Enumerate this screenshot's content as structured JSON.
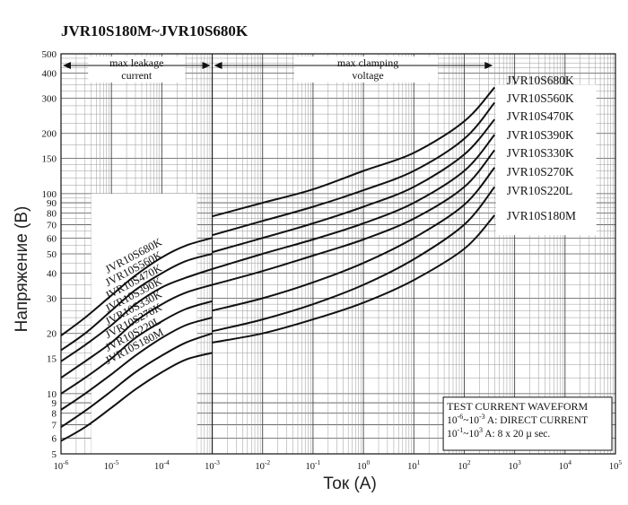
{
  "chart_data": {
    "type": "line",
    "title": "JVR10S180M~JVR10S680K",
    "xlabel": "Ток (А)",
    "ylabel": "Напряжение (В)",
    "x_scale": "log",
    "y_scale": "log",
    "xlim": [
      1e-06,
      100000
    ],
    "ylim": [
      5,
      500
    ],
    "x_ticks": [
      {
        "value": 1e-06,
        "base": "10",
        "exp": "-6"
      },
      {
        "value": 1e-05,
        "base": "10",
        "exp": "-5"
      },
      {
        "value": 0.0001,
        "base": "10",
        "exp": "-4"
      },
      {
        "value": 0.001,
        "base": "10",
        "exp": "-3"
      },
      {
        "value": 0.01,
        "base": "10",
        "exp": "-2"
      },
      {
        "value": 0.1,
        "base": "10",
        "exp": "-1"
      },
      {
        "value": 1,
        "base": "10",
        "exp": "0"
      },
      {
        "value": 10,
        "base": "10",
        "exp": "1"
      },
      {
        "value": 100,
        "base": "10",
        "exp": "2"
      },
      {
        "value": 1000,
        "base": "10",
        "exp": "3"
      },
      {
        "value": 10000,
        "base": "10",
        "exp": "4"
      },
      {
        "value": 100000,
        "base": "10",
        "exp": "5"
      }
    ],
    "y_ticks": [
      {
        "value": 5,
        "label": "5"
      },
      {
        "value": 6,
        "label": "6"
      },
      {
        "value": 7,
        "label": "7"
      },
      {
        "value": 8,
        "label": "8"
      },
      {
        "value": 9,
        "label": "9"
      },
      {
        "value": 10,
        "label": "10"
      },
      {
        "value": 15,
        "label": "15"
      },
      {
        "value": 20,
        "label": "20"
      },
      {
        "value": 30,
        "label": "30"
      },
      {
        "value": 40,
        "label": "40"
      },
      {
        "value": 50,
        "label": "50"
      },
      {
        "value": 60,
        "label": "60"
      },
      {
        "value": 70,
        "label": "70"
      },
      {
        "value": 80,
        "label": "80"
      },
      {
        "value": 90,
        "label": "90"
      },
      {
        "value": 100,
        "label": "100"
      },
      {
        "value": 150,
        "label": "150"
      },
      {
        "value": 200,
        "label": "200"
      },
      {
        "value": 300,
        "label": "300"
      },
      {
        "value": 400,
        "label": "400"
      },
      {
        "value": 500,
        "label": "500"
      }
    ],
    "regions": {
      "leakage": {
        "line1": "max leakage",
        "line2": "current",
        "x_range": [
          1e-06,
          0.001
        ]
      },
      "clamping": {
        "line1": "max clamping",
        "line2": "voltage",
        "x_range": [
          0.001,
          400
        ]
      }
    },
    "test_waveform": {
      "title": "TEST CURRENT WAVEFORM",
      "row1_base": "10",
      "row1_exp1": "-6",
      "row1_sep": "~10",
      "row1_exp2": "-3",
      "row1_text": "A: DIRECT CURRENT",
      "row2_base": "10",
      "row2_exp1": "-1",
      "row2_sep": "~10",
      "row2_exp2": "3",
      "row2_text": "A: 8 x 20 µ sec."
    },
    "series": [
      {
        "name": "JVR10S680K",
        "leakage": {
          "x": [
            1e-06,
            3e-06,
            1e-05,
            3e-05,
            0.0001,
            0.0003,
            0.001
          ],
          "y": [
            19.5,
            24,
            31,
            39,
            48,
            55,
            60
          ]
        },
        "clamping": {
          "x": [
            0.001,
            0.01,
            0.1,
            1,
            10,
            100,
            400
          ],
          "y": [
            77,
            90,
            105,
            130,
            160,
            230,
            340
          ]
        }
      },
      {
        "name": "JVR10S560K",
        "leakage": {
          "x": [
            1e-06,
            3e-06,
            1e-05,
            3e-05,
            0.0001,
            0.0003,
            0.001
          ],
          "y": [
            16.5,
            20,
            26,
            33,
            40,
            46,
            50
          ]
        },
        "clamping": {
          "x": [
            0.001,
            0.01,
            0.1,
            1,
            10,
            100,
            400
          ],
          "y": [
            62,
            73,
            86,
            104,
            130,
            188,
            285
          ]
        }
      },
      {
        "name": "JVR10S470K",
        "leakage": {
          "x": [
            1e-06,
            3e-06,
            1e-05,
            3e-05,
            0.0001,
            0.0003,
            0.001
          ],
          "y": [
            14.5,
            17.5,
            22,
            28,
            34,
            38,
            42
          ]
        },
        "clamping": {
          "x": [
            0.001,
            0.01,
            0.1,
            1,
            10,
            100,
            400
          ],
          "y": [
            51,
            60,
            71,
            86,
            108,
            157,
            235
          ]
        }
      },
      {
        "name": "JVR10S390K",
        "leakage": {
          "x": [
            1e-06,
            3e-06,
            1e-05,
            3e-05,
            0.0001,
            0.0003,
            0.001
          ],
          "y": [
            12,
            14.5,
            18,
            23,
            28,
            32,
            35
          ]
        },
        "clamping": {
          "x": [
            0.001,
            0.01,
            0.1,
            1,
            10,
            100,
            400
          ],
          "y": [
            42,
            50,
            59,
            71,
            90,
            130,
            197
          ]
        }
      },
      {
        "name": "JVR10S330K",
        "leakage": {
          "x": [
            1e-06,
            3e-06,
            1e-05,
            3e-05,
            0.0001,
            0.0003,
            0.001
          ],
          "y": [
            10,
            12,
            15,
            19,
            23,
            26.5,
            29
          ]
        },
        "clamping": {
          "x": [
            0.001,
            0.01,
            0.1,
            1,
            10,
            100,
            400
          ],
          "y": [
            35,
            41,
            49,
            59,
            75,
            108,
            165
          ]
        }
      },
      {
        "name": "JVR10S270K",
        "leakage": {
          "x": [
            1e-06,
            3e-06,
            1e-05,
            3e-05,
            0.0001,
            0.0003,
            0.001
          ],
          "y": [
            8.3,
            10,
            12.5,
            15.5,
            19,
            22,
            24
          ]
        },
        "clamping": {
          "x": [
            0.001,
            0.01,
            0.1,
            1,
            10,
            100,
            400
          ],
          "y": [
            26,
            30,
            36,
            45,
            60,
            88,
            135
          ]
        }
      },
      {
        "name": "JVR10S220L",
        "leakage": {
          "x": [
            1e-06,
            3e-06,
            1e-05,
            3e-05,
            0.0001,
            0.0003,
            0.001
          ],
          "y": [
            6.8,
            8.2,
            10.3,
            12.8,
            15.5,
            18,
            20
          ]
        },
        "clamping": {
          "x": [
            0.001,
            0.01,
            0.1,
            1,
            10,
            100,
            400
          ],
          "y": [
            20.5,
            23.5,
            28,
            35,
            47,
            70,
            108
          ]
        }
      },
      {
        "name": "JVR10S180M",
        "leakage": {
          "x": [
            1e-06,
            3e-06,
            1e-05,
            3e-05,
            0.0001,
            0.0003,
            0.001
          ],
          "y": [
            5.8,
            6.8,
            8.5,
            10.5,
            12.8,
            14.8,
            16
          ]
        },
        "clamping": {
          "x": [
            0.001,
            0.01,
            0.1,
            1,
            10,
            100,
            400
          ],
          "y": [
            18,
            20,
            23.5,
            28.5,
            37,
            53,
            78
          ]
        }
      }
    ]
  }
}
